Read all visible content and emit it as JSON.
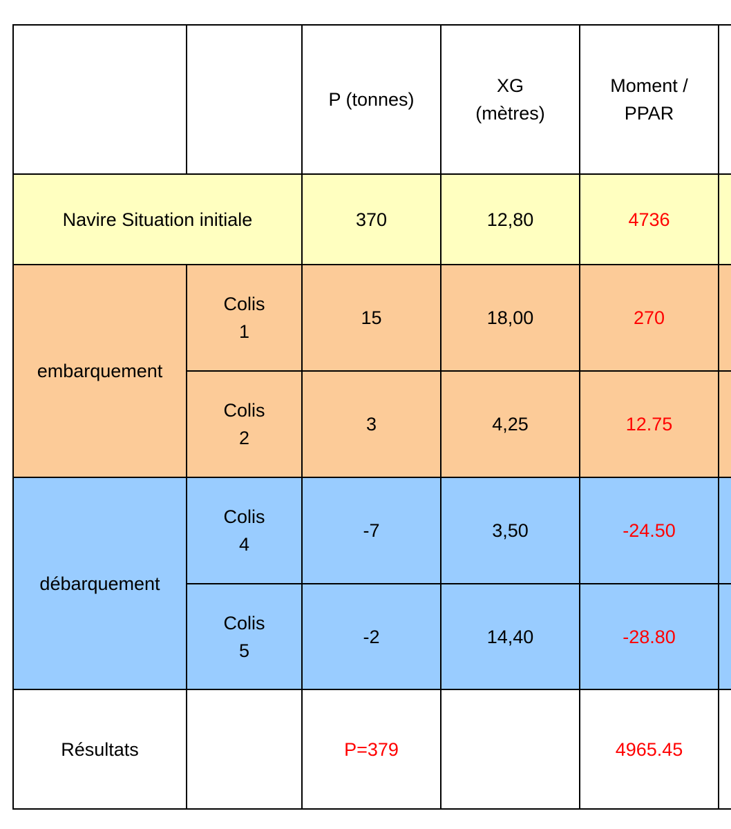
{
  "header": {
    "col_p": "P (tonnes)",
    "col_xg": "XG\n(mètres)",
    "col_moment": "Moment /\nPPAR"
  },
  "initial": {
    "label": "Navire Situation initiale",
    "p": "370",
    "xg": "12,80",
    "moment": "4736"
  },
  "embarquement": {
    "label": "embarquement",
    "rows": [
      {
        "colis": "Colis\n1",
        "p": "15",
        "xg": "18,00",
        "moment": "270"
      },
      {
        "colis": "Colis\n2",
        "p": "3",
        "xg": "4,25",
        "moment": "12.75"
      }
    ]
  },
  "debarquement": {
    "label": "débarquement",
    "rows": [
      {
        "colis": "Colis\n4",
        "p": "-7",
        "xg": "3,50",
        "moment": "-24.50"
      },
      {
        "colis": "Colis\n5",
        "p": "-2",
        "xg": "14,40",
        "moment": "-28.80"
      }
    ]
  },
  "results": {
    "label": "Résultats",
    "p": "P=379",
    "moment": "4965.45"
  },
  "colors": {
    "initial_row": "#ffffc0",
    "embarquement_rows": "#fccb98",
    "debarquement_rows": "#99ccff",
    "computed_values": "#ff0000"
  }
}
